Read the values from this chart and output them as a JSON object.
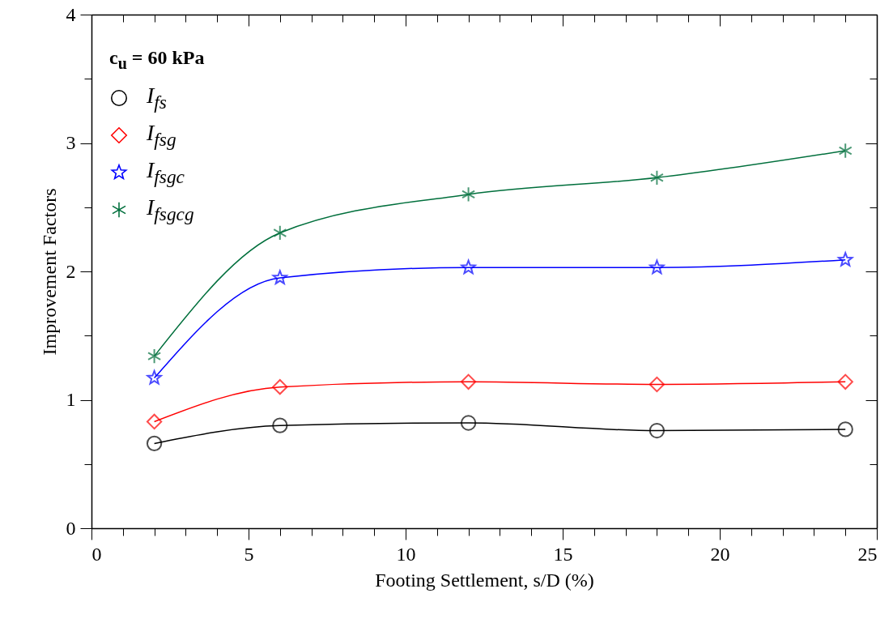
{
  "chart_data": {
    "type": "line",
    "xlabel": "Footing Settlement, s/D (%)",
    "ylabel": "Improvement Factors",
    "legend_title": "c$_{u}$ = 60 kPa",
    "legend": "top left",
    "grid": false,
    "x": [
      2,
      6,
      12,
      18,
      24
    ],
    "series": [
      {
        "name": "I$_{fs}$",
        "color": "#000000",
        "marker": "circle",
        "values": [
          0.66,
          0.8,
          0.82,
          0.76,
          0.77
        ]
      },
      {
        "name": "I$_{fsg}$",
        "color": "#ff0000",
        "marker": "diamond",
        "values": [
          0.83,
          1.1,
          1.14,
          1.12,
          1.14
        ]
      },
      {
        "name": "I$_{fsgc}$",
        "color": "#0000ff",
        "marker": "star",
        "values": [
          1.17,
          1.95,
          2.03,
          2.03,
          2.09
        ]
      },
      {
        "name": "I$_{fsgcg}$",
        "color": "#006f3c",
        "marker": "cross",
        "values": [
          1.34,
          2.3,
          2.6,
          2.73,
          2.94
        ]
      }
    ],
    "xlim": [
      0,
      25
    ],
    "xticks": [
      0,
      {
        "value": 1,
        "label": null
      },
      {
        "value": 2,
        "label": null
      },
      {
        "value": 3,
        "label": null
      },
      {
        "value": 4,
        "label": null
      },
      5,
      {
        "value": 6,
        "label": null
      },
      {
        "value": 7,
        "label": null
      },
      {
        "value": 8,
        "label": null
      },
      {
        "value": 9,
        "label": null
      },
      10,
      {
        "value": 11,
        "label": null
      },
      {
        "value": 12,
        "label": null
      },
      {
        "value": 13,
        "label": null
      },
      {
        "value": 14,
        "label": null
      },
      15,
      {
        "value": 16,
        "label": null
      },
      {
        "value": 17,
        "label": null
      },
      {
        "value": 18,
        "label": null
      },
      {
        "value": 19,
        "label": null
      },
      20,
      {
        "value": 21,
        "label": null
      },
      {
        "value": 22,
        "label": null
      },
      {
        "value": 23,
        "label": null
      },
      {
        "value": 24,
        "label": null
      },
      25
    ],
    "ylim": [
      0,
      4
    ],
    "yticks": [
      0,
      {
        "value": 0.5,
        "label": null
      },
      1,
      {
        "value": 1.5,
        "label": null
      },
      2,
      {
        "value": 2.5,
        "label": null
      },
      3,
      {
        "value": 3.5,
        "label": null
      },
      4
    ]
  }
}
